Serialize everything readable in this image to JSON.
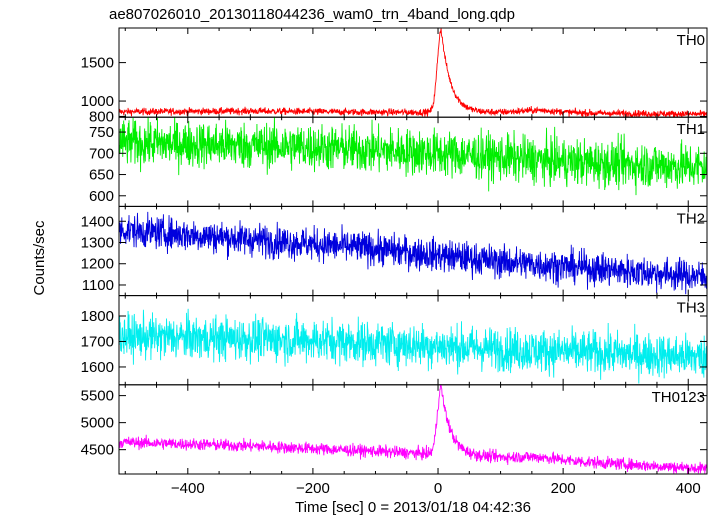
{
  "chart_data": {
    "type": "line",
    "title": "ae807026010_20130118044236_wam0_trn_4band_long.qdp",
    "xlabel": "Time [sec] 0 = 2013/01/18 04:42:36",
    "ylabel": "Counts/sec",
    "xlim": [
      -510,
      430
    ],
    "x_ticks": [
      -400,
      -200,
      0,
      200,
      400
    ],
    "x_tick_labels": [
      "−400",
      "−200",
      "0",
      "200",
      "400"
    ],
    "grid": false,
    "panels": [
      {
        "name": "TH0",
        "color": "#ff0000",
        "ylim": [
          790,
          1950
        ],
        "y_ticks": [
          800,
          1000,
          1500
        ],
        "baseline": [
          [
            -510,
            860
          ],
          [
            -300,
            870
          ],
          [
            -100,
            855
          ],
          [
            150,
            850
          ],
          [
            420,
            830
          ]
        ],
        "noise": 22,
        "flares": [
          {
            "t0": 5,
            "peak": 1080,
            "rise": 6,
            "decay": 15
          }
        ],
        "bumps": [
          {
            "center": 160,
            "amplitude": 30,
            "width": 30
          }
        ]
      },
      {
        "name": "TH1",
        "color": "#00ee00",
        "ylim": [
          575,
          785
        ],
        "y_ticks": [
          600,
          650,
          700,
          750
        ],
        "baseline": [
          [
            -510,
            725
          ],
          [
            -200,
            715
          ],
          [
            0,
            700
          ],
          [
            200,
            680
          ],
          [
            420,
            668
          ]
        ],
        "noise": 27,
        "flares": [],
        "bumps": []
      },
      {
        "name": "TH2",
        "color": "#0000dd",
        "ylim": [
          1050,
          1470
        ],
        "y_ticks": [
          1100,
          1200,
          1300,
          1400
        ],
        "baseline": [
          [
            -510,
            1360
          ],
          [
            -300,
            1315
          ],
          [
            -100,
            1270
          ],
          [
            100,
            1210
          ],
          [
            420,
            1140
          ]
        ],
        "noise": 38,
        "flares": [],
        "bumps": []
      },
      {
        "name": "TH3",
        "color": "#00eeee",
        "ylim": [
          1530,
          1880
        ],
        "y_ticks": [
          1600,
          1700,
          1800
        ],
        "baseline": [
          [
            -510,
            1720
          ],
          [
            -200,
            1705
          ],
          [
            100,
            1670
          ],
          [
            420,
            1640
          ]
        ],
        "noise": 42,
        "flares": [],
        "bumps": []
      },
      {
        "name": "TH0123",
        "color": "#ff00ff",
        "ylim": [
          4050,
          5700
        ],
        "y_ticks": [
          4500,
          5000,
          5500
        ],
        "baseline": [
          [
            -510,
            4640
          ],
          [
            -300,
            4570
          ],
          [
            -100,
            4470
          ],
          [
            150,
            4330
          ],
          [
            420,
            4150
          ]
        ],
        "noise": 55,
        "flares": [
          {
            "t0": 5,
            "peak": 1250,
            "rise": 6,
            "decay": 15
          }
        ],
        "bumps": [
          {
            "center": 160,
            "amplitude": 40,
            "width": 30
          }
        ]
      }
    ]
  }
}
